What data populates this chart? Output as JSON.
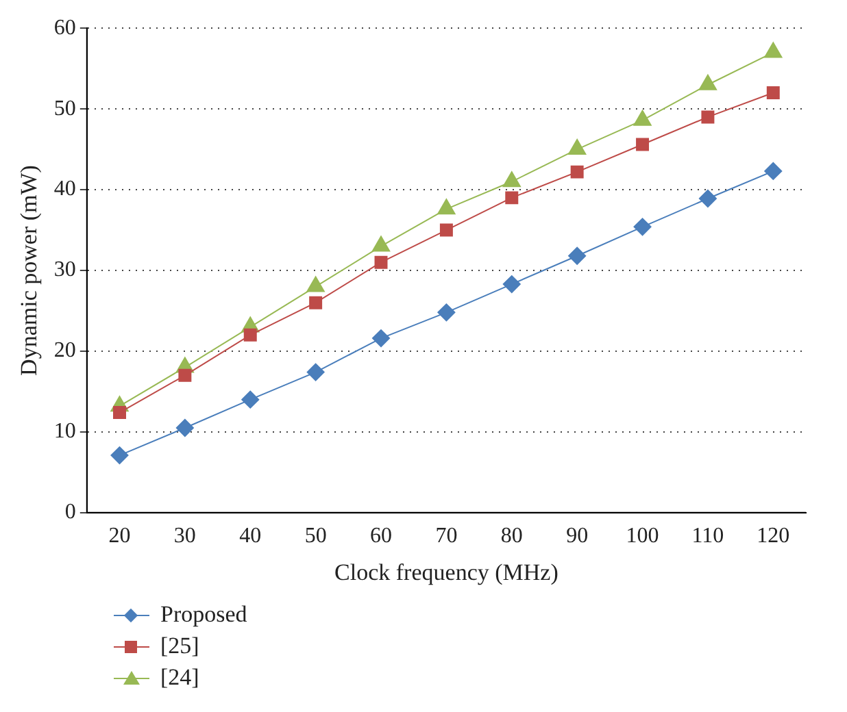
{
  "chart_data": {
    "type": "line",
    "xlabel": "Clock frequency (MHz)",
    "ylabel": "Dynamic power (mW)",
    "categories": [
      "20",
      "30",
      "40",
      "50",
      "60",
      "70",
      "80",
      "90",
      "100",
      "110",
      "120"
    ],
    "series": [
      {
        "name": "Proposed",
        "color": "#4a7ebb",
        "marker": "diamond",
        "values": [
          7.1,
          10.5,
          14,
          17.4,
          21.6,
          24.8,
          28.3,
          31.8,
          35.4,
          38.9,
          42.3
        ]
      },
      {
        "name": "[25]",
        "color": "#be4b48",
        "marker": "square",
        "values": [
          12.4,
          17,
          22,
          26,
          31,
          35,
          39,
          42.2,
          45.6,
          49,
          52
        ]
      },
      {
        "name": "[24]",
        "color": "#98b954",
        "marker": "triangle",
        "values": [
          13.2,
          18,
          23,
          28,
          33,
          37.6,
          41,
          45,
          48.6,
          53,
          57
        ]
      }
    ],
    "ylim": [
      0,
      60
    ],
    "yticks": [
      0,
      10,
      20,
      30,
      40,
      50,
      60
    ],
    "grid": "y",
    "legend": "bottom",
    "line_style": "solid"
  }
}
